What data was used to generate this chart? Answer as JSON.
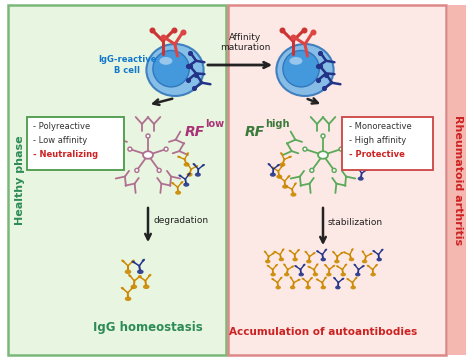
{
  "bg_left": "#e8f5e0",
  "bg_right": "#fce8e4",
  "left_label": "Healthy phase",
  "left_label_color": "#2e8b57",
  "right_label": "Rheumatoid arthritis",
  "right_label_color": "#cc2222",
  "rf_low_label": "RF",
  "rf_low_sup": "low",
  "rf_low_color": "#aa3377",
  "rf_high_label": "RF",
  "rf_high_sup": "high",
  "rf_high_color": "#3a7a3a",
  "cell_label": "IgG-reactive\nB cell",
  "cell_label_color": "#1177cc",
  "affinity_label": "Affinity\nmaturation",
  "degradation_label": "degradation",
  "stabilization_label": "stabilization",
  "homeostasis_label": "IgG homeostasis",
  "homeostasis_color": "#2e8b57",
  "accumulation_label": "Accumulation of autoantibodies",
  "accumulation_color": "#cc2222",
  "left_box_lines": [
    "- Polyreactive",
    "- Low affinity",
    "- Neutralizing"
  ],
  "left_box_colors": [
    "#333333",
    "#333333",
    "#cc2222"
  ],
  "right_box_lines": [
    "- Monoreactive",
    "- High affinity",
    "- Protective"
  ],
  "right_box_colors": [
    "#333333",
    "#333333",
    "#cc2222"
  ],
  "cell_body_color": "#7ab8e8",
  "cell_inner_color": "#4499dd",
  "cell_body_dark": "#3377bb",
  "ab_blue": "#223388",
  "ab_gold": "#cc8800",
  "ab_red": "#cc2222",
  "rf_low_color_body": "#b07090",
  "rf_high_color_body": "#5aaa5a",
  "arrow_color": "#333333"
}
